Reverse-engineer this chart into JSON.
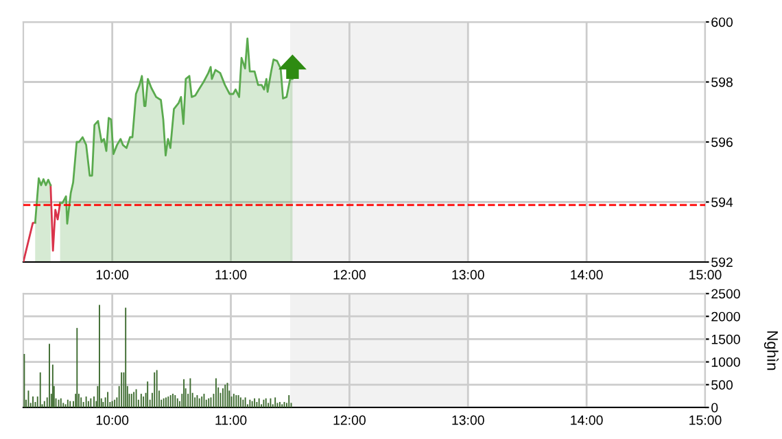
{
  "chart_data": [
    {
      "type": "line",
      "x": [
        9.25,
        9.33,
        9.35,
        9.38,
        9.4,
        9.42,
        9.44,
        9.46,
        9.48,
        9.5,
        9.52,
        9.54,
        9.56,
        9.58,
        9.61,
        9.62,
        9.65,
        9.67,
        9.7,
        9.72,
        9.75,
        9.78,
        9.81,
        9.83,
        9.85,
        9.88,
        9.91,
        9.93,
        9.95,
        9.97,
        9.99,
        10.01,
        10.04,
        10.07,
        10.09,
        10.12,
        10.15,
        10.17,
        10.2,
        10.23,
        10.25,
        10.27,
        10.28,
        10.3,
        10.33,
        10.37,
        10.41,
        10.43,
        10.45,
        10.47,
        10.49,
        10.52,
        10.56,
        10.58,
        10.6,
        10.62,
        10.65,
        10.67,
        10.7,
        10.73,
        10.77,
        10.81,
        10.83,
        10.84,
        10.87,
        10.91,
        10.95,
        10.99,
        11.02,
        11.04,
        11.07,
        11.09,
        11.12,
        11.14,
        11.16,
        11.2,
        11.23,
        11.26,
        11.28,
        11.3,
        11.31,
        11.34,
        11.36,
        11.39,
        11.42,
        11.44,
        11.47,
        11.5,
        11.52
      ],
      "series": [
        {
          "type": "line",
          "color": "#d9334a",
          "values": [
            592.0,
            593.3,
            593.31,
            null,
            null,
            null,
            null,
            null,
            594.56,
            592.38,
            593.74,
            593.42,
            593.97,
            null,
            null,
            null,
            null,
            null,
            null,
            null,
            null,
            null,
            null,
            null,
            null,
            null,
            null,
            null,
            null,
            null,
            null,
            null,
            null,
            null,
            null,
            null,
            null,
            null,
            null,
            null,
            null,
            null,
            null,
            null,
            null,
            null,
            null,
            null,
            null,
            null,
            null,
            null,
            null,
            null,
            null,
            null,
            null,
            null,
            null,
            null,
            null,
            null,
            null,
            null,
            null,
            null,
            null,
            null,
            null,
            null,
            null,
            null,
            null,
            null,
            null,
            null,
            null,
            null,
            null,
            null,
            null,
            null,
            null,
            null,
            null,
            null,
            null,
            null,
            null
          ]
        },
        {
          "type": "area",
          "color": "#5aaa4e",
          "values": [
            null,
            null,
            593.31,
            594.79,
            594.56,
            594.76,
            594.56,
            594.74,
            594.56,
            null,
            null,
            null,
            593.97,
            593.97,
            594.19,
            593.28,
            594.3,
            594.65,
            596.0,
            596.0,
            596.16,
            595.9,
            594.88,
            594.88,
            596.57,
            596.7,
            596.0,
            596.1,
            595.7,
            596.8,
            596.75,
            595.6,
            595.9,
            596.1,
            595.9,
            595.8,
            596.16,
            596.16,
            597.6,
            597.9,
            598.2,
            597.2,
            597.2,
            598.1,
            597.8,
            597.5,
            597.4,
            596.75,
            595.55,
            596.1,
            595.8,
            597.1,
            597.3,
            597.5,
            596.6,
            598.1,
            598.2,
            597.5,
            597.55,
            597.75,
            598.0,
            598.3,
            598.5,
            598.1,
            598.4,
            598.3,
            597.9,
            597.6,
            597.6,
            597.75,
            597.5,
            598.8,
            598.45,
            599.45,
            598.35,
            598.35,
            597.9,
            597.9,
            597.75,
            598.1,
            597.67,
            598.35,
            598.75,
            598.7,
            598.45,
            597.45,
            597.5,
            598.1,
            598.1
          ]
        }
      ],
      "xlim": [
        9.25,
        15
      ],
      "xticks": [
        {
          "value": 10,
          "label": "10:00"
        },
        {
          "value": 11,
          "label": "11:00"
        },
        {
          "value": 12,
          "label": "12:00"
        },
        {
          "value": 13,
          "label": "13:00"
        },
        {
          "value": 14,
          "label": "14:00"
        },
        {
          "value": 15,
          "label": "15:00"
        }
      ],
      "ylim": [
        592,
        600
      ],
      "yticks": [
        592,
        594,
        596,
        598,
        600
      ],
      "grid": true,
      "ref_lines": [
        {
          "axis": "y",
          "value": 593.9,
          "color": "#ff0000",
          "line_style": "dashed"
        }
      ],
      "bands": [
        {
          "axis": "x",
          "from": 11.5,
          "to": 13,
          "color": "#f2f2f2"
        }
      ]
    },
    {
      "type": "bar",
      "x": [
        9.258,
        9.273,
        9.293,
        9.312,
        9.331,
        9.351,
        9.37,
        9.393,
        9.409,
        9.428,
        9.451,
        9.47,
        9.486,
        9.498,
        9.509,
        9.525,
        9.548,
        9.567,
        9.587,
        9.606,
        9.625,
        9.645,
        9.672,
        9.691,
        9.703,
        9.718,
        9.737,
        9.757,
        9.78,
        9.799,
        9.819,
        9.846,
        9.865,
        9.877,
        9.892,
        9.908,
        9.923,
        9.942,
        9.962,
        9.981,
        10.0,
        10.02,
        10.039,
        10.058,
        10.078,
        10.097,
        10.113,
        10.128,
        10.144,
        10.163,
        10.182,
        10.202,
        10.221,
        10.244,
        10.263,
        10.283,
        10.298,
        10.318,
        10.337,
        10.356,
        10.376,
        10.395,
        10.414,
        10.434,
        10.453,
        10.472,
        10.492,
        10.511,
        10.53,
        10.55,
        10.569,
        10.588,
        10.604,
        10.619,
        10.639,
        10.658,
        10.677,
        10.697,
        10.716,
        10.735,
        10.755,
        10.774,
        10.793,
        10.813,
        10.832,
        10.855,
        10.875,
        10.894,
        10.913,
        10.933,
        10.952,
        10.971,
        10.987,
        11.006,
        11.025,
        11.045,
        11.064,
        11.083,
        11.103,
        11.122,
        11.141,
        11.161,
        11.18,
        11.2,
        11.219,
        11.238,
        11.258,
        11.277,
        11.296,
        11.316,
        11.335,
        11.354,
        11.374,
        11.393,
        11.413,
        11.432,
        11.451,
        11.471,
        11.49,
        11.509
      ],
      "values": [
        1175,
        170,
        370,
        100,
        240,
        120,
        240,
        770,
        70,
        140,
        220,
        1395,
        300,
        940,
        470,
        200,
        170,
        200,
        100,
        70,
        170,
        140,
        140,
        300,
        1745,
        300,
        220,
        120,
        240,
        140,
        200,
        240,
        140,
        470,
        2250,
        200,
        120,
        220,
        340,
        120,
        140,
        170,
        220,
        470,
        770,
        770,
        2190,
        470,
        300,
        300,
        340,
        400,
        170,
        300,
        240,
        320,
        570,
        170,
        320,
        770,
        820,
        370,
        170,
        200,
        220,
        240,
        270,
        300,
        270,
        200,
        140,
        300,
        620,
        420,
        300,
        640,
        320,
        220,
        270,
        200,
        240,
        300,
        170,
        200,
        220,
        300,
        640,
        440,
        320,
        420,
        500,
        540,
        370,
        240,
        300,
        270,
        270,
        220,
        170,
        220,
        70,
        170,
        140,
        200,
        120,
        200,
        70,
        170,
        200,
        100,
        200,
        70,
        220,
        100,
        120,
        70,
        120,
        100,
        270,
        100
      ],
      "color": "#3d6b2f",
      "xlim": [
        9.25,
        15
      ],
      "xticks": [
        {
          "value": 10,
          "label": "10:00"
        },
        {
          "value": 11,
          "label": "11:00"
        },
        {
          "value": 12,
          "label": "12:00"
        },
        {
          "value": 13,
          "label": "13:00"
        },
        {
          "value": 14,
          "label": "14:00"
        },
        {
          "value": 15,
          "label": "15:00"
        }
      ],
      "ylim": [
        0,
        2500
      ],
      "yticks": [
        0,
        500,
        1000,
        1500,
        2000,
        2500
      ],
      "ylabel": "Nghìn",
      "grid": true,
      "bands": [
        {
          "axis": "x",
          "from": 11.5,
          "to": 13,
          "color": "#f2f2f2"
        }
      ]
    }
  ]
}
